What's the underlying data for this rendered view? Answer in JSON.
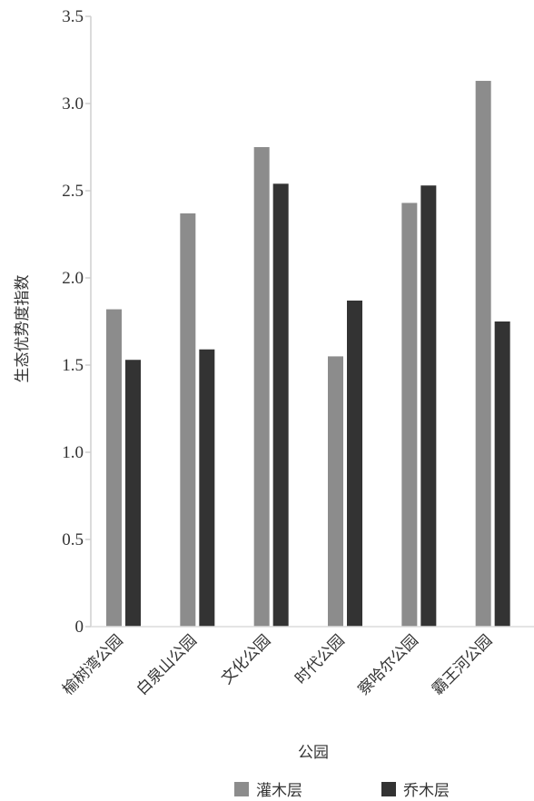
{
  "chart_data": {
    "type": "bar",
    "title": "",
    "xlabel": "公园",
    "ylabel": "生态优势度指数",
    "categories": [
      "榆树湾公园",
      "白泉山公园",
      "文化公园",
      "时代公园",
      "察哈尔公园",
      "霸王河公园"
    ],
    "series": [
      {
        "name": "灌木层",
        "color": "#8c8c8c",
        "values": [
          1.82,
          2.37,
          2.75,
          1.55,
          2.43,
          3.13
        ]
      },
      {
        "name": "乔木层",
        "color": "#333333",
        "values": [
          1.53,
          1.59,
          2.54,
          1.87,
          2.53,
          1.75
        ]
      }
    ],
    "ylim": [
      0,
      3.5
    ],
    "yticks": [
      "0",
      "0.5",
      "1.0",
      "1.5",
      "2.0",
      "2.5",
      "3.0",
      "3.5"
    ],
    "grid": false,
    "legend_position": "bottom"
  }
}
